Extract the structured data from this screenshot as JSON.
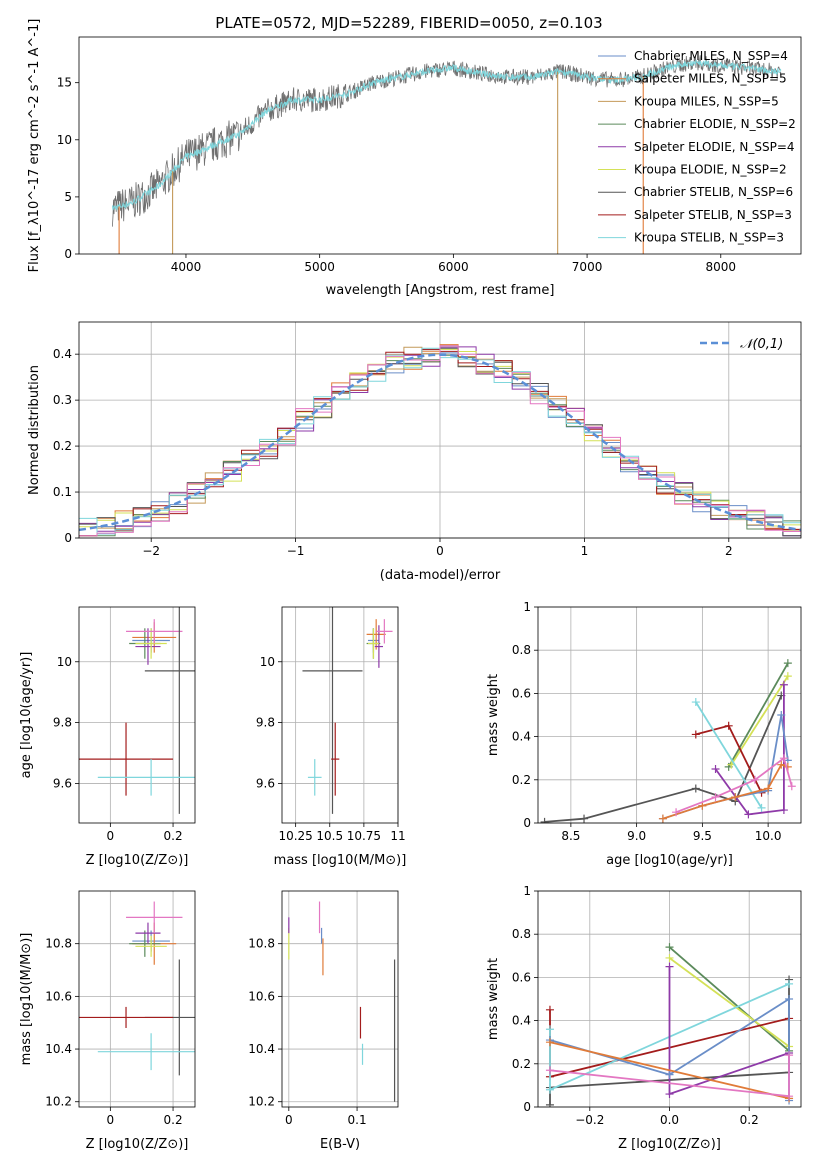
{
  "colors": {
    "Chabrier MILES": "#6a8ec8",
    "Salpeter MILES": "#e07b39",
    "Kroupa MILES": "#c49a5a",
    "Chabrier ELODIE": "#5b8a5b",
    "Salpeter ELODIE": "#8e3aa8",
    "Kroupa ELODIE": "#d4e157",
    "Chabrier STELIB": "#555555",
    "Salpeter STELIB": "#a31c1c",
    "Kroupa STELIB": "#7fd6dc",
    "pink": "#e377c2",
    "orange": "#ff7f0e"
  },
  "chart_data": [
    {
      "type": "line",
      "title": "PLATE=0572, MJD=52289, FIBERID=0050, z=0.103",
      "xlabel": "wavelength [Angstrom, rest frame]",
      "ylabel": "Flux [f_λ10^-17 erg cm^-2 s^-1 A^-1]",
      "xlim": [
        3200,
        8600
      ],
      "ylim": [
        0,
        19
      ],
      "xticks": [
        4000,
        5000,
        6000,
        7000,
        8000
      ],
      "yticks": [
        0,
        5,
        10,
        15
      ],
      "legend_position": "right",
      "legend": [
        "Chabrier MILES, N_SSP=4",
        "Salpeter MILES, N_SSP=5",
        "Kroupa MILES, N_SSP=5",
        "Chabrier ELODIE, N_SSP=2",
        "Salpeter ELODIE, N_SSP=4",
        "Kroupa ELODIE, N_SSP=2",
        "Chabrier STELIB, N_SSP=6",
        "Salpeter STELIB, N_SSP=3",
        "Kroupa STELIB, N_SSP=3"
      ],
      "series": [
        {
          "name": "data",
          "x": [
            3450,
            3600,
            3800,
            4000,
            4200,
            4400,
            4600,
            4800,
            5000,
            5200,
            5400,
            5600,
            5800,
            6000,
            6200,
            6400,
            6600,
            6800,
            7000,
            7200,
            7400,
            7600,
            7800,
            8000,
            8200,
            8400
          ],
          "y": [
            4.0,
            4.5,
            6.0,
            8.5,
            9.5,
            10.5,
            12.5,
            13.5,
            13.5,
            14.0,
            15.0,
            15.5,
            16.0,
            16.3,
            15.8,
            15.5,
            15.5,
            16.0,
            15.5,
            15.2,
            15.5,
            16.3,
            16.8,
            16.5,
            16.3,
            16.0
          ]
        }
      ]
    },
    {
      "type": "line",
      "xlabel": "(data-model)/error",
      "ylabel": "Normed distribution",
      "xlim": [
        -2.5,
        2.5
      ],
      "ylim": [
        0,
        0.47
      ],
      "xticks": [
        -2,
        -1,
        0,
        1,
        2
      ],
      "yticks": [
        0.0,
        0.1,
        0.2,
        0.3,
        0.4
      ],
      "grid": true,
      "legend_position": "top-right",
      "legend": [
        "𝒩(0,1)"
      ],
      "series": [
        {
          "name": "𝒩(0,1)",
          "x": [
            -2.5,
            -2.0,
            -1.5,
            -1.0,
            -0.5,
            0.0,
            0.5,
            1.0,
            1.5,
            2.0,
            2.5
          ],
          "y": [
            0.018,
            0.054,
            0.13,
            0.242,
            0.352,
            0.399,
            0.352,
            0.242,
            0.13,
            0.054,
            0.018
          ]
        }
      ]
    },
    {
      "type": "scatter",
      "xlabel": "Z [log10(Z/Z⊙)]",
      "ylabel": "age  [log10(age/yr)]",
      "xlim": [
        -0.1,
        0.27
      ],
      "ylim": [
        9.47,
        10.18
      ],
      "xticks": [
        0.0,
        0.2
      ],
      "yticks": [
        9.6,
        9.8,
        10.0
      ],
      "grid": true,
      "points": [
        {
          "name": "Chabrier MILES",
          "x": 0.13,
          "y": 10.07,
          "xerr": 0.06,
          "yerr": 0.04
        },
        {
          "name": "Salpeter MILES",
          "x": 0.14,
          "y": 10.08,
          "xerr": 0.07,
          "yerr": 0.05
        },
        {
          "name": "Chabrier ELODIE",
          "x": 0.11,
          "y": 10.06,
          "xerr": 0.05,
          "yerr": 0.05
        },
        {
          "name": "Salpeter ELODIE",
          "x": 0.12,
          "y": 10.05,
          "xerr": 0.04,
          "yerr": 0.06
        },
        {
          "name": "Kroupa ELODIE",
          "x": 0.13,
          "y": 10.06,
          "xerr": 0.05,
          "yerr": 0.05
        },
        {
          "name": "pink",
          "x": 0.14,
          "y": 10.1,
          "xerr": 0.09,
          "yerr": 0.04
        },
        {
          "name": "Chabrier STELIB",
          "x": 0.22,
          "y": 9.97,
          "xerr": 0.11,
          "yerr": 0.47
        },
        {
          "name": "Salpeter STELIB",
          "x": 0.05,
          "y": 9.68,
          "xerr": 0.15,
          "yerr": 0.12
        },
        {
          "name": "Kroupa STELIB",
          "x": 0.13,
          "y": 9.62,
          "xerr": 0.17,
          "yerr": 0.06
        }
      ]
    },
    {
      "type": "scatter",
      "xlabel": "mass [log10(M/M⊙)]",
      "ylabel": "",
      "xlim": [
        10.15,
        11.0
      ],
      "ylim": [
        9.47,
        10.18
      ],
      "xticks": [
        10.25,
        10.5,
        10.75,
        11.0
      ],
      "yticks": [
        9.6,
        9.8,
        10.0
      ],
      "grid": true,
      "points": [
        {
          "name": "Chabrier MILES",
          "x": 10.82,
          "y": 10.07,
          "xerr": 0.04,
          "yerr": 0.04
        },
        {
          "name": "Salpeter MILES",
          "x": 10.84,
          "y": 10.09,
          "xerr": 0.07,
          "yerr": 0.05
        },
        {
          "name": "Chabrier ELODIE",
          "x": 10.82,
          "y": 10.06,
          "xerr": 0.05,
          "yerr": 0.05
        },
        {
          "name": "Salpeter ELODIE",
          "x": 10.86,
          "y": 10.05,
          "xerr": 0.03,
          "yerr": 0.07
        },
        {
          "name": "Kroupa ELODIE",
          "x": 10.82,
          "y": 10.06,
          "xerr": 0.04,
          "yerr": 0.05
        },
        {
          "name": "pink",
          "x": 10.9,
          "y": 10.1,
          "xerr": 0.06,
          "yerr": 0.04
        },
        {
          "name": "Chabrier STELIB",
          "x": 10.52,
          "y": 9.97,
          "xerr": 0.22,
          "yerr": 0.47
        },
        {
          "name": "Salpeter STELIB",
          "x": 10.54,
          "y": 9.68,
          "xerr": 0.03,
          "yerr": 0.12
        },
        {
          "name": "Kroupa STELIB",
          "x": 10.39,
          "y": 9.62,
          "xerr": 0.05,
          "yerr": 0.06
        }
      ]
    },
    {
      "type": "line",
      "xlabel": "age  [log10(age/yr)]",
      "ylabel": "mass weight",
      "xlim": [
        8.25,
        10.25
      ],
      "ylim": [
        0,
        1
      ],
      "xticks": [
        8.5,
        9.0,
        9.5,
        10.0
      ],
      "yticks": [
        0.0,
        0.2,
        0.4,
        0.6,
        0.8,
        1.0
      ],
      "grid": true,
      "series": [
        {
          "name": "Chabrier STELIB",
          "x": [
            8.3,
            8.6,
            9.45,
            9.75,
            10.1
          ],
          "y": [
            0.005,
            0.02,
            0.16,
            0.1,
            0.59
          ]
        },
        {
          "name": "Chabrier ELODIE",
          "x": [
            9.7,
            10.15
          ],
          "y": [
            0.26,
            0.74
          ]
        },
        {
          "name": "Kroupa ELODIE",
          "x": [
            9.72,
            10.15
          ],
          "y": [
            0.27,
            0.68
          ]
        },
        {
          "name": "Salpeter STELIB",
          "x": [
            9.45,
            9.7,
            9.95
          ],
          "y": [
            0.41,
            0.45,
            0.14
          ]
        },
        {
          "name": "Kroupa STELIB",
          "x": [
            9.45,
            9.95
          ],
          "y": [
            0.56,
            0.07
          ]
        },
        {
          "name": "Salpeter ELODIE",
          "x": [
            9.6,
            9.85,
            10.12,
            10.12
          ],
          "y": [
            0.25,
            0.04,
            0.06,
            0.64
          ]
        },
        {
          "name": "Chabrier MILES",
          "x": [
            9.2,
            9.5,
            9.75,
            10.0,
            10.1,
            10.15
          ],
          "y": [
            0.02,
            0.08,
            0.12,
            0.15,
            0.5,
            0.29
          ]
        },
        {
          "name": "Salpeter MILES",
          "x": [
            9.2,
            9.5,
            9.75,
            10.0,
            10.1,
            10.15
          ],
          "y": [
            0.02,
            0.08,
            0.12,
            0.16,
            0.27,
            0.26
          ]
        },
        {
          "name": "pink",
          "x": [
            9.3,
            9.6,
            9.9,
            10.12,
            10.18
          ],
          "y": [
            0.05,
            0.12,
            0.2,
            0.3,
            0.17
          ]
        }
      ]
    },
    {
      "type": "scatter",
      "xlabel": "Z [log10(Z/Z⊙)]",
      "ylabel": "mass [log10(M/M⊙)]",
      "xlim": [
        -0.1,
        0.27
      ],
      "ylim": [
        10.18,
        11.0
      ],
      "xticks": [
        0.0,
        0.2
      ],
      "yticks": [
        10.2,
        10.4,
        10.6,
        10.8
      ],
      "grid": true,
      "points": [
        {
          "name": "Chabrier MILES",
          "x": 0.13,
          "y": 10.81,
          "xerr": 0.06,
          "yerr": 0.04
        },
        {
          "name": "Salpeter MILES",
          "x": 0.14,
          "y": 10.8,
          "xerr": 0.07,
          "yerr": 0.08
        },
        {
          "name": "Chabrier ELODIE",
          "x": 0.11,
          "y": 10.8,
          "xerr": 0.05,
          "yerr": 0.05
        },
        {
          "name": "Salpeter ELODIE",
          "x": 0.12,
          "y": 10.84,
          "xerr": 0.04,
          "yerr": 0.04
        },
        {
          "name": "Kroupa ELODIE",
          "x": 0.13,
          "y": 10.79,
          "xerr": 0.05,
          "yerr": 0.04
        },
        {
          "name": "pink",
          "x": 0.14,
          "y": 10.9,
          "xerr": 0.09,
          "yerr": 0.06
        },
        {
          "name": "Chabrier STELIB",
          "x": 0.22,
          "y": 10.52,
          "xerr": 0.11,
          "yerr": 0.22
        },
        {
          "name": "Salpeter STELIB",
          "x": 0.05,
          "y": 10.52,
          "xerr": 0.15,
          "yerr": 0.04
        },
        {
          "name": "Kroupa STELIB",
          "x": 0.13,
          "y": 10.39,
          "xerr": 0.17,
          "yerr": 0.07
        }
      ]
    },
    {
      "type": "scatter",
      "xlabel": "E(B-V)",
      "ylabel": "",
      "xlim": [
        -0.01,
        0.16
      ],
      "ylim": [
        10.18,
        11.0
      ],
      "xticks": [
        0.0,
        0.1
      ],
      "yticks": [
        10.2,
        10.4,
        10.6,
        10.8
      ],
      "grid": true,
      "points": [
        {
          "name": "Kroupa ELODIE",
          "x": 0.0,
          "y": 10.8,
          "xerr": 0.0,
          "yerr": 0.06
        },
        {
          "name": "Salpeter ELODIE",
          "x": 0.0,
          "y": 10.87,
          "xerr": 0.0,
          "yerr": 0.03
        },
        {
          "name": "pink",
          "x": 0.045,
          "y": 10.9,
          "xerr": 0.0,
          "yerr": 0.06
        },
        {
          "name": "Chabrier MILES",
          "x": 0.048,
          "y": 10.83,
          "xerr": 0.0,
          "yerr": 0.03
        },
        {
          "name": "Salpeter MILES",
          "x": 0.05,
          "y": 10.75,
          "xerr": 0.0,
          "yerr": 0.07
        },
        {
          "name": "Salpeter STELIB",
          "x": 0.105,
          "y": 10.5,
          "xerr": 0.0,
          "yerr": 0.06
        },
        {
          "name": "Kroupa STELIB",
          "x": 0.108,
          "y": 10.38,
          "xerr": 0.0,
          "yerr": 0.04
        },
        {
          "name": "Chabrier STELIB",
          "x": 0.155,
          "y": 10.47,
          "xerr": 0.0,
          "yerr": 0.27
        }
      ]
    },
    {
      "type": "line",
      "xlabel": "Z [log10(Z/Z⊙)]",
      "ylabel": "mass weight",
      "xlim": [
        -0.33,
        0.33
      ],
      "ylim": [
        0,
        1
      ],
      "xticks": [
        -0.2,
        0.0,
        0.2
      ],
      "yticks": [
        0.0,
        0.2,
        0.4,
        0.6,
        0.8,
        1.0
      ],
      "grid": true,
      "series": [
        {
          "name": "Chabrier STELIB",
          "x": [
            -0.3,
            -0.3,
            0.3,
            0.3
          ],
          "y": [
            0.01,
            0.09,
            0.16,
            0.59
          ]
        },
        {
          "name": "Chabrier ELODIE",
          "x": [
            0.0,
            0.3
          ],
          "y": [
            0.74,
            0.26
          ]
        },
        {
          "name": "Kroupa ELODIE",
          "x": [
            0.0,
            0.3
          ],
          "y": [
            0.69,
            0.28
          ]
        },
        {
          "name": "Salpeter STELIB",
          "x": [
            -0.3,
            -0.3,
            0.3
          ],
          "y": [
            0.45,
            0.14,
            0.41
          ]
        },
        {
          "name": "Kroupa STELIB",
          "x": [
            -0.3,
            -0.3,
            0.3
          ],
          "y": [
            0.36,
            0.08,
            0.57
          ]
        },
        {
          "name": "Salpeter ELODIE",
          "x": [
            0.0,
            0.0,
            0.3
          ],
          "y": [
            0.65,
            0.06,
            0.25
          ]
        },
        {
          "name": "Chabrier MILES",
          "x": [
            -0.3,
            0.0,
            0.3,
            0.3
          ],
          "y": [
            0.31,
            0.15,
            0.5,
            0.03
          ]
        },
        {
          "name": "Salpeter MILES",
          "x": [
            -0.3,
            0.3
          ],
          "y": [
            0.3,
            0.04
          ]
        },
        {
          "name": "pink",
          "x": [
            -0.3,
            0.3,
            0.3
          ],
          "y": [
            0.17,
            0.05,
            0.24
          ]
        }
      ]
    }
  ]
}
